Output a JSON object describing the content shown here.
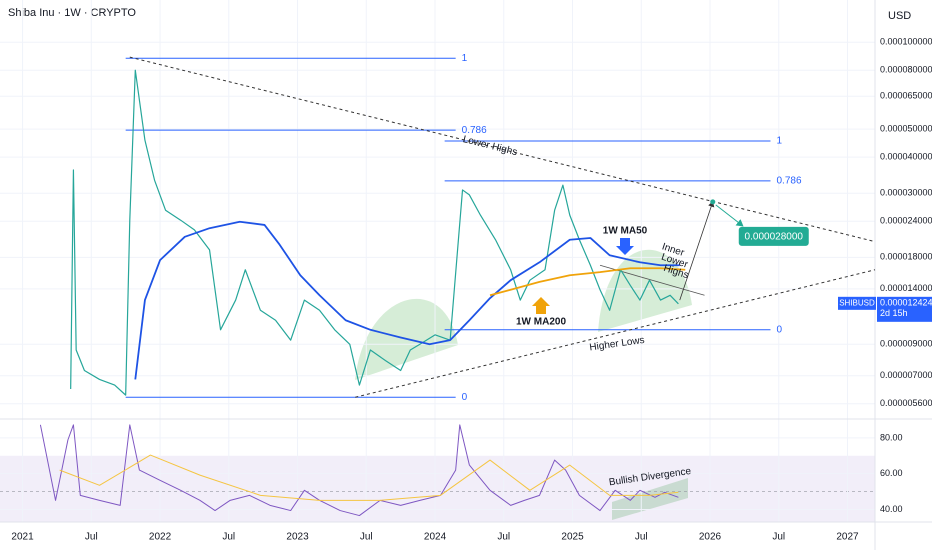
{
  "chart_data": [
    {
      "type": "line",
      "title": "Shiba Inu · 1W · CRYPTO",
      "y_axis_label": "USD",
      "log_scale": true,
      "grid": true,
      "xlim": [
        2020.836,
        2027.2
      ],
      "ylim": [
        5e-06,
        0.00014
      ],
      "xticks": [
        2021,
        {
          "value": 2021.5,
          "label": "Jul"
        },
        2022,
        {
          "value": 2022.5,
          "label": "Jul"
        },
        2023,
        {
          "value": 2023.5,
          "label": "Jul"
        },
        2024,
        {
          "value": 2024.5,
          "label": "Jul"
        },
        2025,
        {
          "value": 2025.5,
          "label": "Jul"
        },
        2026,
        {
          "value": 2026.5,
          "label": "Jul"
        },
        2027
      ],
      "yticks": [
        {
          "value": 0.0001,
          "label": "0.000100000"
        },
        {
          "value": 8e-05,
          "label": "0.000080000"
        },
        {
          "value": 6.5e-05,
          "label": "0.000065000"
        },
        {
          "value": 5e-05,
          "label": "0.000050000"
        },
        {
          "value": 4e-05,
          "label": "0.000040000"
        },
        {
          "value": 3e-05,
          "label": "0.000030000"
        },
        {
          "value": 2.4e-05,
          "label": "0.000024000"
        },
        {
          "value": 1.8e-05,
          "label": "0.000018000"
        },
        {
          "value": 1.4e-05,
          "label": "0.000014000"
        },
        {
          "value": 9e-06,
          "label": "0.000009000"
        },
        {
          "value": 7e-06,
          "label": "0.000007000"
        },
        {
          "value": 5.6e-06,
          "label": "0.000005600"
        }
      ],
      "series": [
        {
          "name": "SHIBUSD",
          "color": "#26a69a",
          "x": [
            2021.35,
            2021.37,
            2021.39,
            2021.45,
            2021.56,
            2021.67,
            2021.75,
            2021.78,
            2021.82,
            2021.84,
            2021.89,
            2021.96,
            2022.04,
            2022.15,
            2022.25,
            2022.36,
            2022.44,
            2022.55,
            2022.62,
            2022.73,
            2022.84,
            2022.95,
            2023.05,
            2023.16,
            2023.27,
            2023.38,
            2023.45,
            2023.53,
            2023.64,
            2023.75,
            2023.82,
            2023.89,
            2024.0,
            2024.11,
            2024.17,
            2024.2,
            2024.25,
            2024.33,
            2024.44,
            2024.55,
            2024.62,
            2024.69,
            2024.8,
            2024.87,
            2024.93,
            2024.98,
            2025.05,
            2025.13,
            2025.2,
            2025.27,
            2025.35,
            2025.42,
            2025.49,
            2025.56,
            2025.64,
            2025.71,
            2025.77
          ],
          "values": [
            6.3e-06,
            3.61e-05,
            8.6e-06,
            7.3e-06,
            6.8e-06,
            6.5e-06,
            6e-06,
            2.42e-05,
            8e-05,
            6.82e-05,
            4.58e-05,
            3.33e-05,
            2.62e-05,
            2.42e-05,
            2.24e-05,
            1.91e-05,
            1.01e-05,
            1.28e-05,
            1.63e-05,
            1.18e-05,
            1.09e-05,
            9.3e-06,
            1.28e-05,
            1.18e-05,
            1.01e-05,
            9e-06,
            6.5e-06,
            8.6e-06,
            7.9e-06,
            7.3e-06,
            8.6e-06,
            9e-06,
            9.7e-06,
            9.3e-06,
            2.07e-05,
            3.08e-05,
            2.96e-05,
            2.52e-05,
            2.07e-05,
            1.63e-05,
            1.28e-05,
            1.5e-05,
            1.63e-05,
            2.62e-05,
            3.2e-05,
            2.52e-05,
            2.07e-05,
            1.69e-05,
            1.39e-05,
            1.18e-05,
            1.63e-05,
            1.44e-05,
            1.28e-05,
            1.5e-05,
            1.28e-05,
            1.33e-05,
            1.2424e-05
          ]
        },
        {
          "name": "1W MA50",
          "color": "#1e53e5",
          "x": [
            2021.82,
            2021.89,
            2022.0,
            2022.18,
            2022.36,
            2022.58,
            2022.76,
            2022.87,
            2023.02,
            2023.16,
            2023.35,
            2023.53,
            2023.75,
            2023.96,
            2024.11,
            2024.25,
            2024.4,
            2024.55,
            2024.76,
            2024.98,
            2025.13,
            2025.27,
            2025.49,
            2025.64,
            2025.78
          ],
          "values": [
            6.8e-06,
            1.28e-05,
            1.76e-05,
            2.12e-05,
            2.27e-05,
            2.39e-05,
            2.33e-05,
            1.99e-05,
            1.56e-05,
            1.33e-05,
            1.09e-05,
            1.01e-05,
            9.5e-06,
            9e-06,
            9.3e-06,
            1.09e-05,
            1.3e-05,
            1.5e-05,
            1.73e-05,
            2.07e-05,
            2.1e-05,
            1.83e-05,
            1.73e-05,
            1.69e-05,
            1.69e-05
          ]
        },
        {
          "name": "1W MA200",
          "color": "#f0a30a",
          "x": [
            2024.4,
            2024.55,
            2024.76,
            2024.98,
            2025.2,
            2025.42,
            2025.64,
            2025.82
          ],
          "values": [
            1.33e-05,
            1.39e-05,
            1.48e-05,
            1.56e-05,
            1.6e-05,
            1.65e-05,
            1.65e-05,
            1.63e-05
          ]
        }
      ],
      "fibs": [
        {
          "x": [
            2021.75,
            2024.15
          ],
          "levels": [
            1,
            0.786,
            0
          ],
          "prices": [
            8.8e-05,
            4.96e-05,
            5.9e-06
          ]
        },
        {
          "x": [
            2024.07,
            2026.44
          ],
          "levels": [
            1,
            0.786,
            0
          ],
          "prices": [
            4.55e-05,
            3.31e-05,
            1.01e-05
          ]
        }
      ],
      "trendlines": [
        {
          "x": [
            2021.78,
            2027.2
          ],
          "values": [
            8.88e-05,
            2.04e-05
          ]
        },
        {
          "x": [
            2023.42,
            2027.2
          ],
          "values": [
            5.9e-06,
            1.63e-05
          ]
        },
        {
          "x": [
            2025.2,
            2025.96
          ],
          "values": [
            1.69e-05,
            1.33e-05
          ]
        }
      ],
      "projection": {
        "x": [
          2025.78,
          2026.02
        ],
        "values": [
          1.28e-05,
          2.8e-05
        ]
      },
      "target": {
        "x": 2026.02,
        "value": 2.8e-05,
        "value_label": "0.000028000"
      },
      "countdown": "2d 15h",
      "annotations": {
        "lower_highs": "Lower Highs",
        "inner_lower_highs": [
          "Inner",
          "Lower",
          "Highs"
        ],
        "higher_lows": "Higher Lows"
      }
    },
    {
      "type": "line",
      "ylim": [
        33,
        90
      ],
      "yticks": [
        {
          "value": 80,
          "label": "80.00"
        },
        {
          "value": 60,
          "label": "60.00"
        },
        {
          "value": 40,
          "label": "40.00"
        }
      ],
      "band": [
        30,
        70
      ],
      "midline": 50,
      "annotation": "Bullish Divergence",
      "series": [
        {
          "color": "#7e57c2",
          "x": [
            2021.13,
            2021.24,
            2021.33,
            2021.37,
            2021.42,
            2021.56,
            2021.71,
            2021.78,
            2021.85,
            2022.0,
            2022.15,
            2022.29,
            2022.4,
            2022.51,
            2022.65,
            2022.8,
            2022.95,
            2023.05,
            2023.16,
            2023.31,
            2023.45,
            2023.6,
            2023.75,
            2023.89,
            2024.04,
            2024.15,
            2024.18,
            2024.25,
            2024.4,
            2024.55,
            2024.65,
            2024.76,
            2024.87,
            2024.95,
            2025.05,
            2025.2,
            2025.31,
            2025.42,
            2025.49,
            2025.6,
            2025.67,
            2025.77
          ],
          "values": [
            87.3,
            45.1,
            78.9,
            87.3,
            47.9,
            45.1,
            42.3,
            87.3,
            62,
            56.3,
            50.7,
            45.1,
            39.4,
            45.1,
            47.9,
            42.3,
            39.4,
            50.7,
            45.1,
            39.4,
            36.6,
            45.1,
            42.3,
            45.1,
            47.9,
            62,
            87.3,
            64.8,
            50.7,
            42.3,
            45.1,
            47.9,
            67.6,
            62,
            47.9,
            39.4,
            50.7,
            45.1,
            50.7,
            46.8,
            49.6,
            46.8
          ]
        },
        {
          "color": "#f5c542",
          "x": [
            2021.27,
            2021.56,
            2021.93,
            2022.29,
            2022.73,
            2023.16,
            2023.6,
            2024.04,
            2024.4,
            2024.69,
            2024.98,
            2025.27,
            2025.56,
            2025.77
          ],
          "values": [
            62,
            53.5,
            70.4,
            59.2,
            47.9,
            45.1,
            45.1,
            47.9,
            67.6,
            50.7,
            64.8,
            47.9,
            47.9,
            49.6
          ]
        }
      ]
    }
  ]
}
